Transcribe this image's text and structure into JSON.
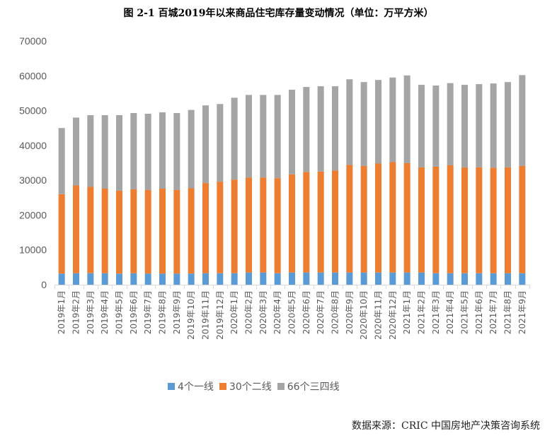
{
  "chart_data": {
    "type": "bar",
    "stacked": true,
    "title": "图 2-1 百城2019年以来商品住宅库存量变动情况（单位：万平方米）",
    "xlabel": "",
    "ylabel": "",
    "ylim": [
      0,
      70000
    ],
    "yticks": [
      0,
      10000,
      20000,
      30000,
      40000,
      50000,
      60000,
      70000
    ],
    "grid": false,
    "legend": "bottom",
    "categories": [
      "2019年1月",
      "2019年2月",
      "2019年3月",
      "2019年4月",
      "2019年5月",
      "2019年6月",
      "2019年7月",
      "2019年8月",
      "2019年9月",
      "2019年10月",
      "2019年11月",
      "2019年12月",
      "2020年1月",
      "2020年2月",
      "2020年3月",
      "2020年4月",
      "2020年5月",
      "2020年6月",
      "2020年7月",
      "2020年8月",
      "2020年9月",
      "2020年10月",
      "2020年11月",
      "2020年12月",
      "2021年1月",
      "2021年2月",
      "2021年3月",
      "2021年4月",
      "2021年5月",
      "2021年6月",
      "2021年7月",
      "2021年8月",
      "2021年9月"
    ],
    "series": [
      {
        "name": "4个一线",
        "color": "#5b9bd5",
        "values": [
          3200,
          3300,
          3300,
          3300,
          3200,
          3300,
          3200,
          3200,
          3200,
          3200,
          3300,
          3300,
          3300,
          3500,
          3500,
          3300,
          3500,
          3500,
          3500,
          3500,
          3500,
          3500,
          3500,
          3500,
          3500,
          3500,
          3300,
          3300,
          3300,
          3300,
          3300,
          3300,
          3300
        ]
      },
      {
        "name": "30个二线",
        "color": "#ed7d31",
        "values": [
          22800,
          25200,
          24800,
          24300,
          23800,
          24100,
          24000,
          24400,
          24000,
          24500,
          25900,
          26300,
          26900,
          27300,
          27300,
          27300,
          28200,
          28900,
          29000,
          29300,
          30900,
          30600,
          31300,
          31700,
          31400,
          30200,
          30600,
          31000,
          30400,
          30400,
          30300,
          30400,
          30800
        ]
      },
      {
        "name": "66个三四线",
        "color": "#a5a5a5",
        "values": [
          19000,
          19500,
          20600,
          21100,
          21700,
          21900,
          21900,
          21900,
          22100,
          22500,
          22300,
          22300,
          23500,
          23700,
          23700,
          23900,
          24300,
          24400,
          24500,
          24200,
          24600,
          24100,
          24000,
          24300,
          25200,
          23700,
          23300,
          23600,
          23700,
          23900,
          24200,
          24500,
          26100
        ]
      }
    ]
  },
  "source": "数据来源：CRIC 中国房地产决策咨询系统"
}
